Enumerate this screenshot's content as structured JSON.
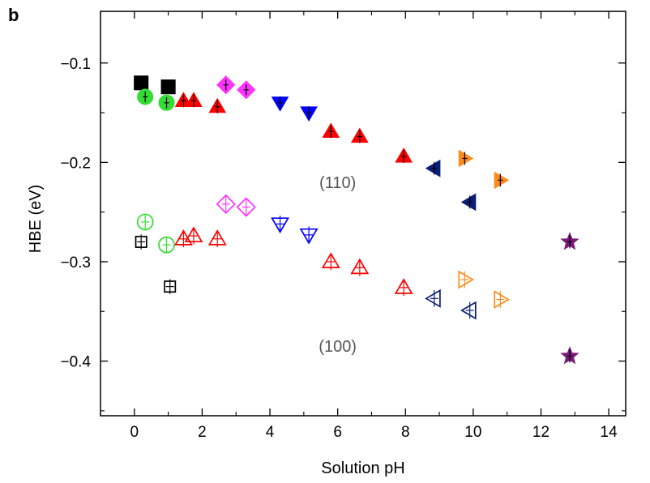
{
  "chart_data": {
    "type": "scatter",
    "panel_label": "b",
    "xlabel": "Solution pH",
    "ylabel": "HBE (eV)",
    "xlim": [
      -1,
      14.5
    ],
    "ylim": [
      -0.455,
      -0.048
    ],
    "xticks": [
      0,
      2,
      4,
      6,
      8,
      10,
      12,
      14
    ],
    "xtick_labels": [
      "0",
      "2",
      "4",
      "6",
      "8",
      "10",
      "12",
      "14"
    ],
    "yticks": [
      -0.1,
      -0.2,
      -0.3,
      -0.4
    ],
    "ytick_labels": [
      "−0.1",
      "−0.2",
      "−0.3",
      "−0.4"
    ],
    "grid": false,
    "annotations": [
      {
        "text": "(110)",
        "x": 6.0,
        "y": -0.22
      },
      {
        "text": "(100)",
        "x": 6.0,
        "y": -0.385
      }
    ],
    "series": [
      {
        "marker": "square",
        "color": "#000000",
        "points": [
          [
            0.2,
            -0.12
          ],
          [
            1.0,
            -0.124
          ]
        ],
        "error": 0.004
      },
      {
        "marker": "square-open",
        "color": "#000000",
        "points": [
          [
            0.2,
            -0.28
          ],
          [
            1.05,
            -0.325
          ]
        ],
        "error": 0.005
      },
      {
        "marker": "circle",
        "color": "#33dd33",
        "points": [
          [
            0.32,
            -0.134
          ],
          [
            0.95,
            -0.14
          ]
        ],
        "error": 0.003
      },
      {
        "marker": "circle-open",
        "color": "#33dd33",
        "points": [
          [
            0.32,
            -0.26
          ],
          [
            0.95,
            -0.283
          ]
        ],
        "error": 0.006
      },
      {
        "marker": "triangle-up",
        "color": "#ff0000",
        "points": [
          [
            1.45,
            -0.138
          ],
          [
            1.75,
            -0.138
          ],
          [
            2.45,
            -0.144
          ],
          [
            5.8,
            -0.169
          ],
          [
            6.65,
            -0.174
          ],
          [
            7.95,
            -0.194
          ]
        ],
        "error": 0.004
      },
      {
        "marker": "triangle-up-open",
        "color": "#ff0000",
        "points": [
          [
            1.45,
            -0.277
          ],
          [
            1.75,
            -0.274
          ],
          [
            2.45,
            -0.277
          ],
          [
            5.8,
            -0.3
          ],
          [
            6.65,
            -0.306
          ],
          [
            7.95,
            -0.326
          ]
        ],
        "error": 0.006
      },
      {
        "marker": "diamond",
        "color": "#ff33ff",
        "points": [
          [
            2.7,
            -0.122
          ],
          [
            3.3,
            -0.127
          ]
        ],
        "error": 0.003
      },
      {
        "marker": "diamond-open",
        "color": "#ff33ff",
        "points": [
          [
            2.7,
            -0.242
          ],
          [
            3.3,
            -0.245
          ]
        ],
        "error": 0.006
      },
      {
        "marker": "triangle-down",
        "color": "#0000ff",
        "points": [
          [
            4.3,
            -0.14
          ],
          [
            5.15,
            -0.15
          ]
        ],
        "error": 0.004
      },
      {
        "marker": "triangle-down-open",
        "color": "#0000ff",
        "points": [
          [
            4.3,
            -0.262
          ],
          [
            5.15,
            -0.273
          ]
        ],
        "error": 0.006
      },
      {
        "marker": "triangle-left",
        "color": "#0a1e78",
        "points": [
          [
            8.85,
            -0.206
          ],
          [
            9.9,
            -0.24
          ]
        ],
        "error": 0.004
      },
      {
        "marker": "triangle-left-open",
        "color": "#0a1e78",
        "points": [
          [
            8.85,
            -0.337
          ],
          [
            9.9,
            -0.349
          ]
        ],
        "error": 0.006
      },
      {
        "marker": "triangle-right",
        "color": "#ff8c1a",
        "points": [
          [
            9.75,
            -0.196
          ],
          [
            10.8,
            -0.218
          ]
        ],
        "error": 0.004
      },
      {
        "marker": "triangle-right-open",
        "color": "#ff8c1a",
        "points": [
          [
            9.75,
            -0.318
          ],
          [
            10.8,
            -0.338
          ]
        ],
        "error": 0.006
      },
      {
        "marker": "star",
        "color": "#7a1a7a",
        "points": [
          [
            12.85,
            -0.28
          ],
          [
            12.85,
            -0.395
          ]
        ],
        "error": 0.004
      }
    ]
  }
}
